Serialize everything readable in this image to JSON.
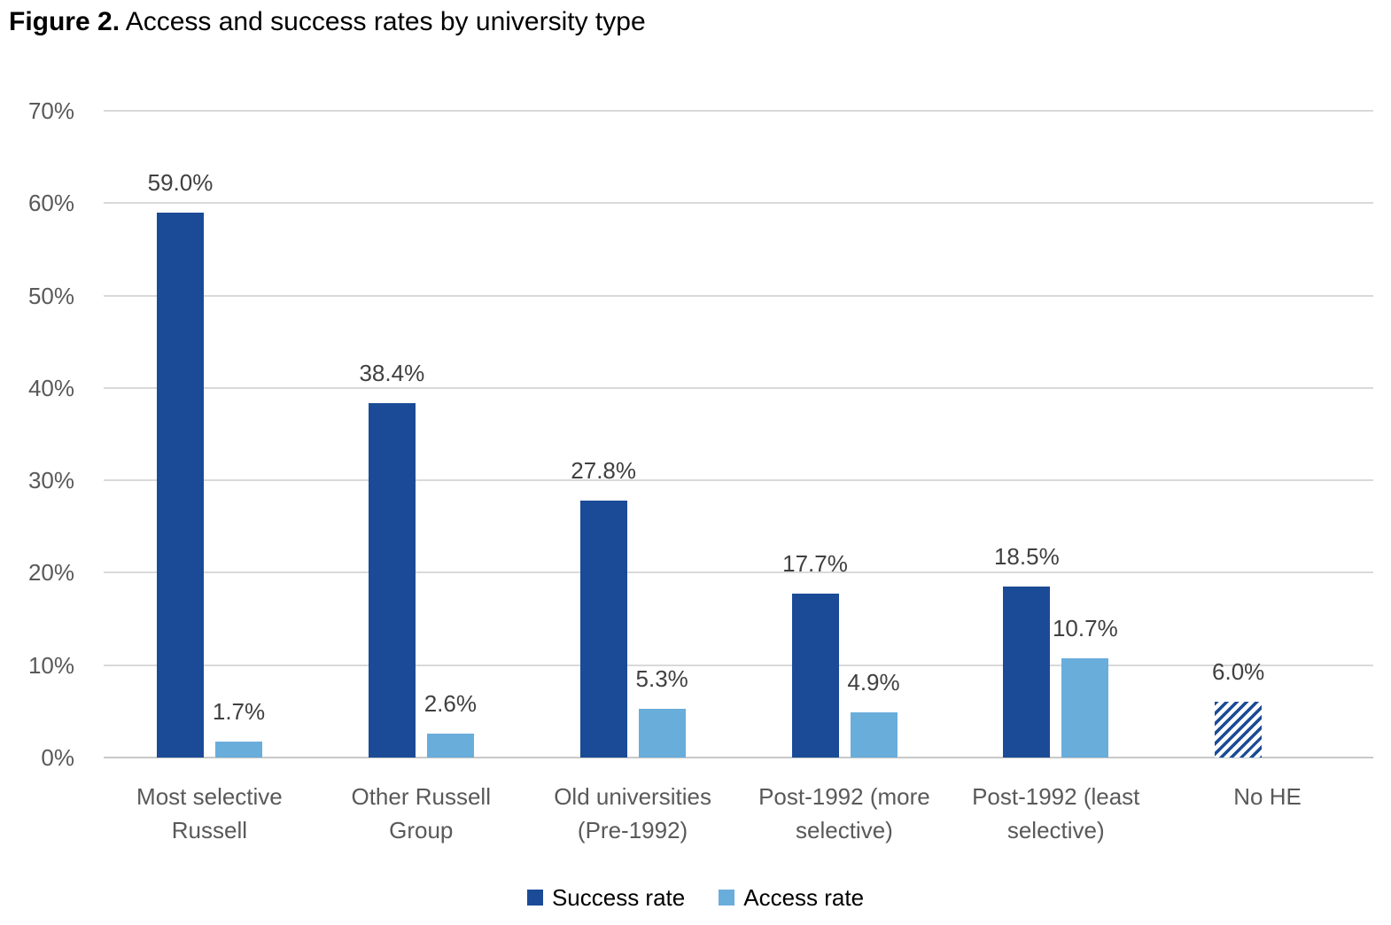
{
  "title": {
    "prefix": "Figure 2.",
    "text": " Access and success rates by university type"
  },
  "colors": {
    "success": "#1B4B96",
    "access": "#69ADDB",
    "gridline": "#D9D9D9",
    "axis_line": "#C8C8C8",
    "tick_label": "#595959",
    "value_label": "#404040",
    "title": "#000000",
    "background": "#FFFFFF"
  },
  "legend": {
    "items": [
      {
        "label": "Success rate",
        "color": "#1B4B96",
        "swatch": "solid"
      },
      {
        "label": "Access rate",
        "color": "#69ADDB",
        "swatch": "solid"
      }
    ]
  },
  "chart_data": {
    "type": "bar",
    "title": "Figure 2. Access and success rates by university type",
    "categories": [
      "Most selective Russell",
      "Other Russell Group",
      "Old universities (Pre-1992)",
      "Post-1992 (more selective)",
      "Post-1992 (least selective)",
      "No HE"
    ],
    "category_label_lines": [
      [
        "Most selective",
        "Russell"
      ],
      [
        "Other Russell",
        "Group"
      ],
      [
        "Old universities",
        "(Pre-1992)"
      ],
      [
        "Post-1992 (more",
        "selective)"
      ],
      [
        "Post-1992 (least",
        "selective)"
      ],
      [
        "No HE"
      ]
    ],
    "series": [
      {
        "name": "Success rate",
        "color": "#1B4B96",
        "values": [
          59.0,
          38.4,
          27.8,
          17.7,
          18.5,
          6.0
        ],
        "data_labels": [
          "59.0%",
          "38.4%",
          "27.8%",
          "17.7%",
          "18.5%",
          "6.0%"
        ],
        "hatched_indices": [
          5
        ]
      },
      {
        "name": "Access rate",
        "color": "#69ADDB",
        "values": [
          1.7,
          2.6,
          5.3,
          4.9,
          10.7,
          null
        ],
        "data_labels": [
          "1.7%",
          "2.6%",
          "5.3%",
          "4.9%",
          "10.7%",
          null
        ],
        "hatched_indices": []
      }
    ],
    "xlabel": "",
    "ylabel": "",
    "ylim": [
      0,
      70
    ],
    "ytick_step": 10,
    "ytick_labels": [
      "0%",
      "10%",
      "20%",
      "30%",
      "40%",
      "50%",
      "60%",
      "70%"
    ],
    "grid": "horizontal",
    "legend_position": "bottom"
  }
}
